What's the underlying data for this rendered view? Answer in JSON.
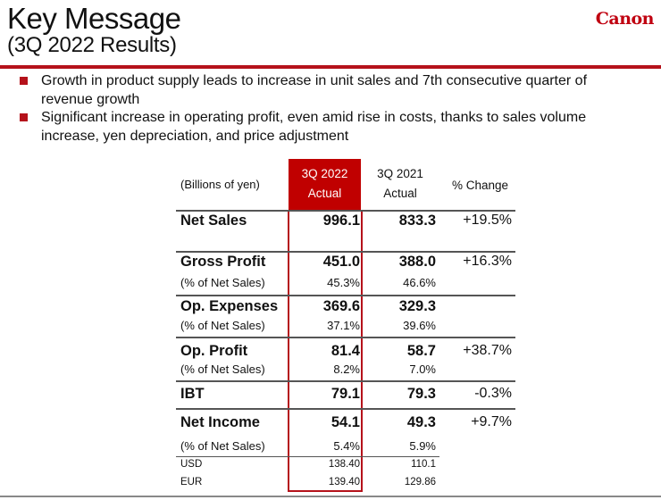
{
  "header": {
    "title": "Key Message",
    "subtitle": "(3Q 2022 Results)",
    "logo_text": "Canon",
    "accent_color": "#b5121b"
  },
  "bullets": [
    "Growth in product supply leads to increase in unit sales and 7th consecutive quarter of revenue growth",
    "Significant increase in operating profit, even amid rise in costs, thanks to sales volume increase, yen depreciation, and price adjustment"
  ],
  "table": {
    "unit_label": "(Billions of yen)",
    "columns": [
      {
        "line1": "3Q 2022",
        "line2": "Actual"
      },
      {
        "line1": "3Q 2021",
        "line2": "Actual"
      },
      {
        "line1": "% Change"
      }
    ],
    "rows": {
      "net_sales": {
        "label": "Net Sales",
        "cur": "996.1",
        "prev": "833.3",
        "change": "+19.5%"
      },
      "gross_profit": {
        "label": "Gross Profit",
        "cur": "451.0",
        "prev": "388.0",
        "change": "+16.3%",
        "pct_label": "(% of Net Sales)",
        "pct_cur": "45.3%",
        "pct_prev": "46.6%"
      },
      "op_expenses": {
        "label": "Op. Expenses",
        "cur": "369.6",
        "prev": "329.3",
        "pct_label": "(% of Net Sales)",
        "pct_cur": "37.1%",
        "pct_prev": "39.6%"
      },
      "op_profit": {
        "label": "Op. Profit",
        "cur": "81.4",
        "prev": "58.7",
        "change": "+38.7%",
        "pct_label": "(% of Net Sales)",
        "pct_cur": "8.2%",
        "pct_prev": "7.0%"
      },
      "ibt": {
        "label": "IBT",
        "cur": "79.1",
        "prev": "79.3",
        "change": "-0.3%"
      },
      "net_income": {
        "label": "Net Income",
        "cur": "54.1",
        "prev": "49.3",
        "change": "+9.7%",
        "pct_label": "(% of Net Sales)",
        "pct_cur": "5.4%",
        "pct_prev": "5.9%"
      },
      "usd": {
        "label": "USD",
        "cur": "138.40",
        "prev": "110.1"
      },
      "eur": {
        "label": "EUR",
        "cur": "139.40",
        "prev": "129.86"
      }
    }
  }
}
